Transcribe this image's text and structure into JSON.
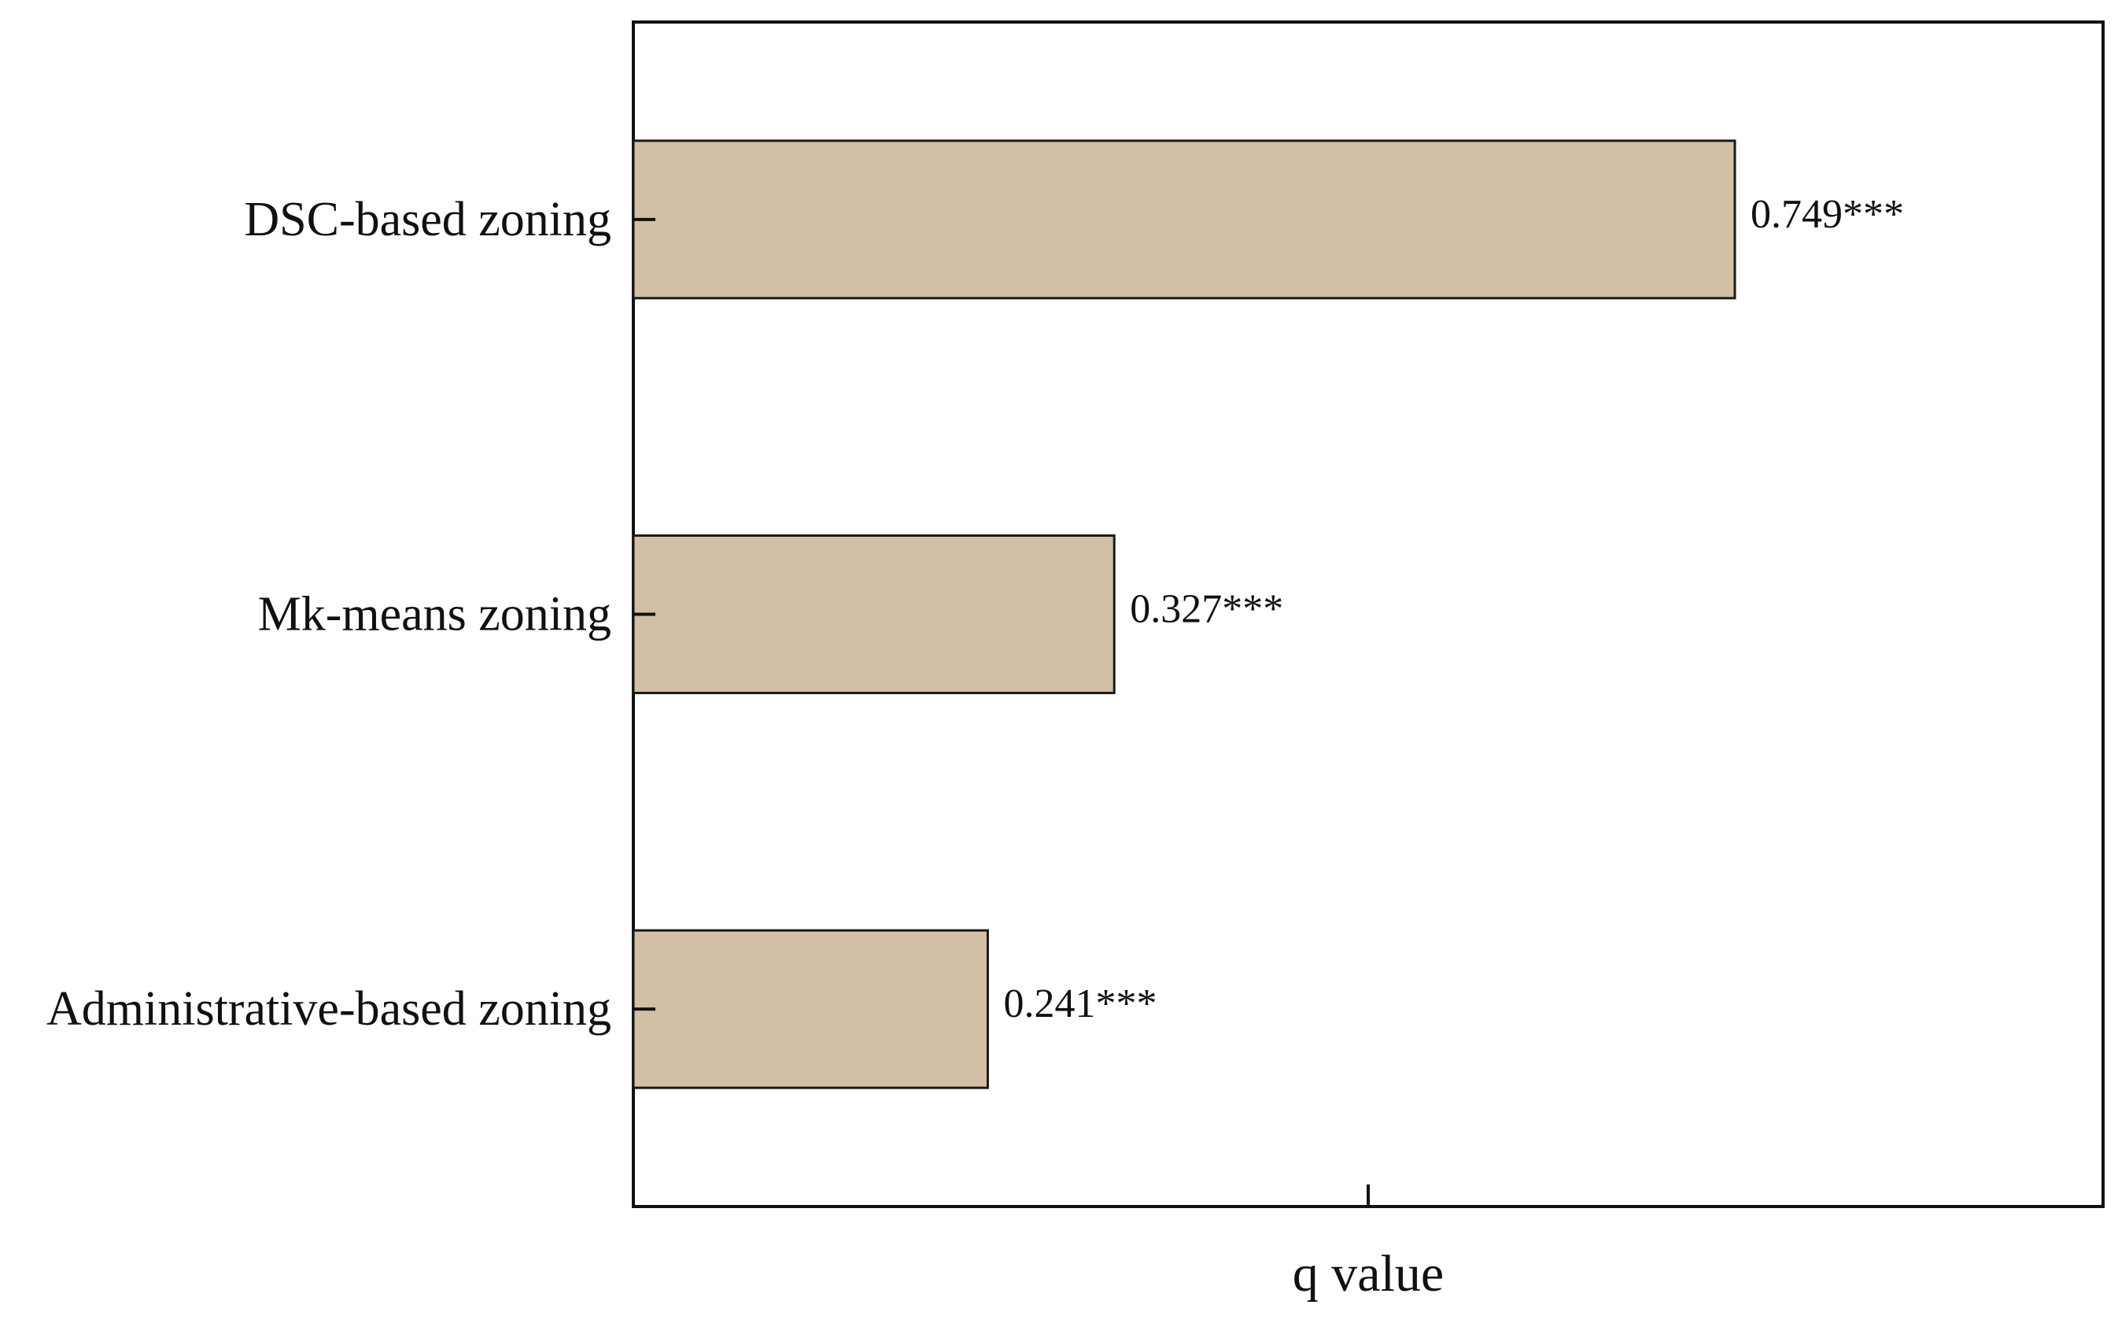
{
  "chart_data": {
    "type": "bar",
    "orientation": "horizontal",
    "categories": [
      "DSC-based zoning",
      "Mk-means zoning",
      "Administrative-based zoning"
    ],
    "values": [
      0.749,
      0.327,
      0.241
    ],
    "data_labels": [
      "0.749***",
      "0.327***",
      "0.241***"
    ],
    "xlabel": "q value",
    "ylabel": "",
    "title": "",
    "grid": false,
    "legend": "none",
    "bar_color": "#d3bfa5",
    "bar_edge_color": "#1a1a1a"
  }
}
